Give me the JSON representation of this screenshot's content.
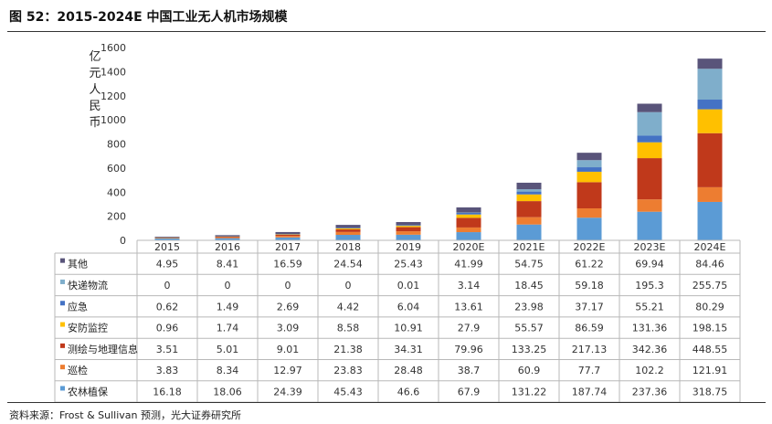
{
  "title": "图 52：2015-2024E 中国工业无人机市场规模",
  "source": "资料来源：Frost & Sullivan 预测，光大证券研究所",
  "chart_data": {
    "type": "bar",
    "stacked": true,
    "ylabel": "亿元人民币",
    "ylim": [
      0,
      1600
    ],
    "yticks": [
      0,
      200,
      400,
      600,
      800,
      1000,
      1200,
      1400,
      1600
    ],
    "grid": false,
    "legend": "data-table-left",
    "categories": [
      "2015",
      "2016",
      "2017",
      "2018",
      "2019",
      "2020E",
      "2021E",
      "2022E",
      "2023E",
      "2024E"
    ],
    "series": [
      {
        "name": "农林植保",
        "color": "#5b9bd5",
        "values": [
          16.18,
          18.06,
          24.39,
          45.43,
          46.6,
          67.9,
          131.22,
          187.74,
          237.36,
          318.75
        ],
        "labels": [
          "16.18",
          "18.06",
          "24.39",
          "45.43",
          "46.6",
          "67.9",
          "131.22",
          "187.74",
          "237.36",
          "318.75"
        ]
      },
      {
        "name": "巡检",
        "color": "#ed7d31",
        "values": [
          3.83,
          8.34,
          12.97,
          23.83,
          28.48,
          38.7,
          60.9,
          77.7,
          102.2,
          121.91
        ],
        "labels": [
          "3.83",
          "8.34",
          "12.97",
          "23.83",
          "28.48",
          "38.7",
          "60.9",
          "77.7",
          "102.2",
          "121.91"
        ]
      },
      {
        "name": "测绘与地理信息",
        "color": "#c0391b",
        "values": [
          3.51,
          5.01,
          9.01,
          21.38,
          34.31,
          79.96,
          133.25,
          217.13,
          342.36,
          448.55
        ],
        "labels": [
          "3.51",
          "5.01",
          "9.01",
          "21.38",
          "34.31",
          "79.96",
          "133.25",
          "217.13",
          "342.36",
          "448.55"
        ]
      },
      {
        "name": "安防监控",
        "color": "#ffc000",
        "values": [
          0.96,
          1.74,
          3.09,
          8.58,
          10.91,
          27.9,
          55.57,
          86.59,
          131.36,
          198.15
        ],
        "labels": [
          "0.96",
          "1.74",
          "3.09",
          "8.58",
          "10.91",
          "27.9",
          "55.57",
          "86.59",
          "131.36",
          "198.15"
        ]
      },
      {
        "name": "应急",
        "color": "#4472c4",
        "values": [
          0.62,
          1.49,
          2.69,
          4.42,
          6.04,
          13.61,
          23.98,
          37.17,
          55.21,
          80.29
        ],
        "labels": [
          "0.62",
          "1.49",
          "2.69",
          "4.42",
          "6.04",
          "13.61",
          "23.98",
          "37.17",
          "55.21",
          "80.29"
        ]
      },
      {
        "name": "快递物流",
        "color": "#7faecb",
        "values": [
          0,
          0,
          0,
          0,
          0.01,
          3.14,
          18.45,
          59.18,
          195.3,
          255.75
        ],
        "labels": [
          "0",
          "0",
          "0",
          "0",
          "0.01",
          "3.14",
          "18.45",
          "59.18",
          "195.3",
          "255.75"
        ]
      },
      {
        "name": "其他",
        "color": "#59547a",
        "values": [
          4.95,
          8.41,
          16.59,
          24.54,
          25.43,
          41.99,
          54.75,
          61.22,
          69.94,
          84.46
        ],
        "labels": [
          "4.95",
          "8.41",
          "16.59",
          "24.54",
          "25.43",
          "41.99",
          "54.75",
          "61.22",
          "69.94",
          "84.46"
        ]
      }
    ]
  }
}
